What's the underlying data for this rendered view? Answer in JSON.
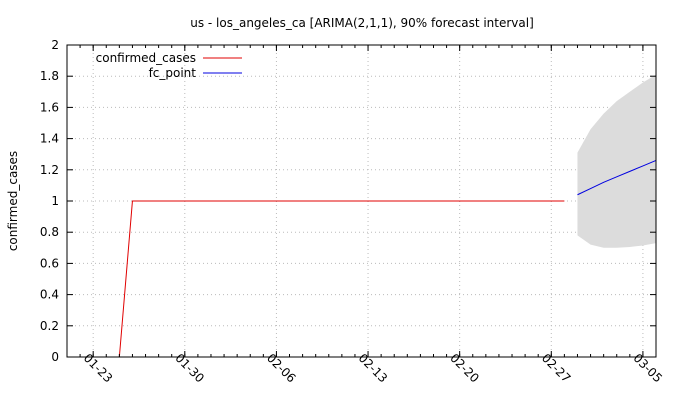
{
  "chart_data": {
    "type": "line",
    "title": "us - los_angeles_ca [ARIMA(2,1,1), 90% forecast interval]",
    "ylabel": "confirmed_cases",
    "xlabel": "",
    "ylim": [
      0,
      2
    ],
    "yticks": [
      "0",
      "0.2",
      "0.4",
      "0.6",
      "0.8",
      "1",
      "1.2",
      "1.4",
      "1.6",
      "1.8",
      "2"
    ],
    "xticks": [
      "01-23",
      "01-30",
      "02-06",
      "02-13",
      "02-20",
      "02-27",
      "03-05"
    ],
    "xtick_dates": [
      "2020-01-23",
      "2020-01-30",
      "2020-02-06",
      "2020-02-13",
      "2020-02-20",
      "2020-02-27",
      "2020-03-05"
    ],
    "xlim": [
      "2020-01-21",
      "2020-03-06"
    ],
    "grid": true,
    "legend_position": "top-left",
    "series": [
      {
        "name": "confirmed_cases",
        "color": "#e00000",
        "x": [
          "2020-01-25",
          "2020-01-26",
          "2020-01-27",
          "2020-01-28",
          "2020-01-29",
          "2020-01-30",
          "2020-01-31",
          "2020-02-01",
          "2020-02-02",
          "2020-02-03",
          "2020-02-04",
          "2020-02-05",
          "2020-02-06",
          "2020-02-07",
          "2020-02-08",
          "2020-02-09",
          "2020-02-10",
          "2020-02-11",
          "2020-02-12",
          "2020-02-13",
          "2020-02-14",
          "2020-02-15",
          "2020-02-16",
          "2020-02-17",
          "2020-02-18",
          "2020-02-19",
          "2020-02-20",
          "2020-02-21",
          "2020-02-22",
          "2020-02-23",
          "2020-02-24",
          "2020-02-25",
          "2020-02-26",
          "2020-02-27",
          "2020-02-28"
        ],
        "y": [
          0,
          1,
          1,
          1,
          1,
          1,
          1,
          1,
          1,
          1,
          1,
          1,
          1,
          1,
          1,
          1,
          1,
          1,
          1,
          1,
          1,
          1,
          1,
          1,
          1,
          1,
          1,
          1,
          1,
          1,
          1,
          1,
          1,
          1,
          1
        ]
      },
      {
        "name": "fc_point",
        "color": "#0000e0",
        "x": [
          "2020-02-29",
          "2020-03-01",
          "2020-03-02",
          "2020-03-03",
          "2020-03-04",
          "2020-03-05",
          "2020-03-06"
        ],
        "y": [
          1.04,
          1.08,
          1.12,
          1.155,
          1.19,
          1.225,
          1.26
        ]
      }
    ],
    "interval": {
      "label": "90% forecast interval",
      "color": "#dcdcdc",
      "x": [
        "2020-02-29",
        "2020-03-01",
        "2020-03-02",
        "2020-03-03",
        "2020-03-04",
        "2020-03-05",
        "2020-03-06"
      ],
      "upper": [
        1.31,
        1.46,
        1.56,
        1.64,
        1.7,
        1.76,
        1.81
      ],
      "lower": [
        0.78,
        0.72,
        0.7,
        0.7,
        0.705,
        0.715,
        0.73
      ]
    }
  }
}
